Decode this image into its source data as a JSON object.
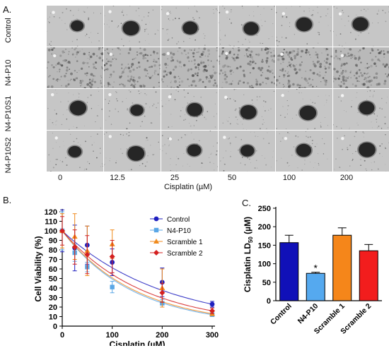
{
  "panels": {
    "a": {
      "letter": "A.",
      "rows": [
        "Control",
        "N4-P10",
        "N4-P10S1",
        "N4-P10S2"
      ],
      "columns": [
        "0",
        "12.5",
        "25",
        "50",
        "100",
        "200"
      ],
      "xlabel": "Cisplatin (µM)"
    },
    "b": {
      "letter": "B."
    },
    "c": {
      "letter": "C."
    }
  },
  "chart_data": [
    {
      "type": "scatter",
      "title": "",
      "xlabel": "Cisplatin (µM)",
      "ylabel": "Cell Viability (%)",
      "xlim": [
        0,
        300
      ],
      "ylim": [
        0,
        120
      ],
      "xticks": [
        0,
        100,
        200,
        300
      ],
      "yticks": [
        0,
        10,
        20,
        30,
        40,
        50,
        60,
        70,
        80,
        90,
        100,
        110,
        120
      ],
      "legend": "top-right",
      "fit_curves": true,
      "x": [
        0,
        25,
        50,
        100,
        200,
        300
      ],
      "series": [
        {
          "name": "Control",
          "color": "#1f1fbf",
          "marker": "circle",
          "values": [
            100,
            82,
            85,
            67,
            46,
            23
          ],
          "errors": [
            22,
            24,
            20,
            14,
            15,
            3
          ]
        },
        {
          "name": "N4-P10",
          "color": "#5aa7e6",
          "marker": "square",
          "values": [
            100,
            77,
            62,
            41,
            24,
            12
          ],
          "errors": [
            20,
            9,
            5,
            6,
            4,
            2
          ]
        },
        {
          "name": "Scramble 1",
          "color": "#f08a1c",
          "marker": "triangle",
          "values": [
            100,
            94,
            79,
            86,
            40,
            13
          ],
          "errors": [
            18,
            24,
            26,
            15,
            20,
            2
          ]
        },
        {
          "name": "Scramble 2",
          "color": "#d42020",
          "marker": "diamond",
          "values": [
            100,
            83,
            75,
            73,
            35,
            16
          ],
          "errors": [
            15,
            18,
            20,
            17,
            10,
            3
          ]
        }
      ]
    },
    {
      "type": "bar",
      "title": "",
      "xlabel": "",
      "ylabel": "Cisplatin LD50 (µM)",
      "ylabel_main": "Cisplatin LD",
      "ylabel_sub": "50",
      "ylabel_tail": " (µM)",
      "ylim": [
        0,
        250
      ],
      "yticks": [
        0,
        50,
        100,
        150,
        200,
        250
      ],
      "categories": [
        "Control",
        "N4-P10",
        "Scramble 1",
        "Scramble 2"
      ],
      "values": [
        157,
        74,
        177,
        135
      ],
      "errors": [
        20,
        3,
        20,
        17
      ],
      "colors": [
        "#1010b8",
        "#55a9ef",
        "#f5861a",
        "#f21d1d"
      ],
      "annotations": [
        {
          "category": "N4-P10",
          "text": "*"
        }
      ]
    }
  ]
}
